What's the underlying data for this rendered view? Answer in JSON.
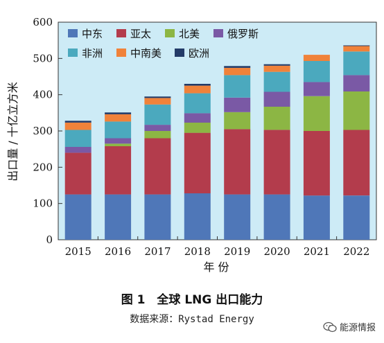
{
  "chart_data": {
    "type": "bar",
    "stacked": true,
    "categories": [
      "2015",
      "2016",
      "2017",
      "2018",
      "2019",
      "2020",
      "2021",
      "2022"
    ],
    "series": [
      {
        "name": "中东",
        "color": "#4f77b8",
        "values": [
          125,
          125,
          125,
          128,
          125,
          125,
          122,
          122
        ]
      },
      {
        "name": "亚太",
        "color": "#b33c4c",
        "values": [
          115,
          133,
          155,
          167,
          180,
          178,
          178,
          181
        ]
      },
      {
        "name": "北美",
        "color": "#8cb644",
        "values": [
          0,
          7,
          20,
          28,
          47,
          64,
          96,
          106
        ]
      },
      {
        "name": "俄罗斯",
        "color": "#7a59a5",
        "values": [
          16,
          15,
          17,
          26,
          40,
          41,
          39,
          45
        ]
      },
      {
        "name": "非洲",
        "color": "#4ba9be",
        "values": [
          47,
          46,
          56,
          55,
          62,
          55,
          58,
          65
        ]
      },
      {
        "name": "中南美",
        "color": "#f0823a",
        "values": [
          20,
          20,
          18,
          21,
          20,
          17,
          17,
          15
        ]
      },
      {
        "name": "欧洲",
        "color": "#233b68",
        "values": [
          5,
          5,
          4,
          5,
          5,
          4,
          0,
          2
        ]
      }
    ],
    "ylim": [
      0,
      600
    ],
    "yticks": [
      0,
      100,
      200,
      300,
      400,
      500,
      600
    ],
    "xlabel": "年  份",
    "ylabel": "出口量 / 十亿立方米",
    "legend": "top-left",
    "grid": false,
    "plot_background": "#cdebf6"
  },
  "caption": "图 1　全球 LNG 出口能力",
  "source": "数据来源：Rystad Energy",
  "watermark": {
    "icon": "wechat-icon",
    "text": "能源情报"
  }
}
